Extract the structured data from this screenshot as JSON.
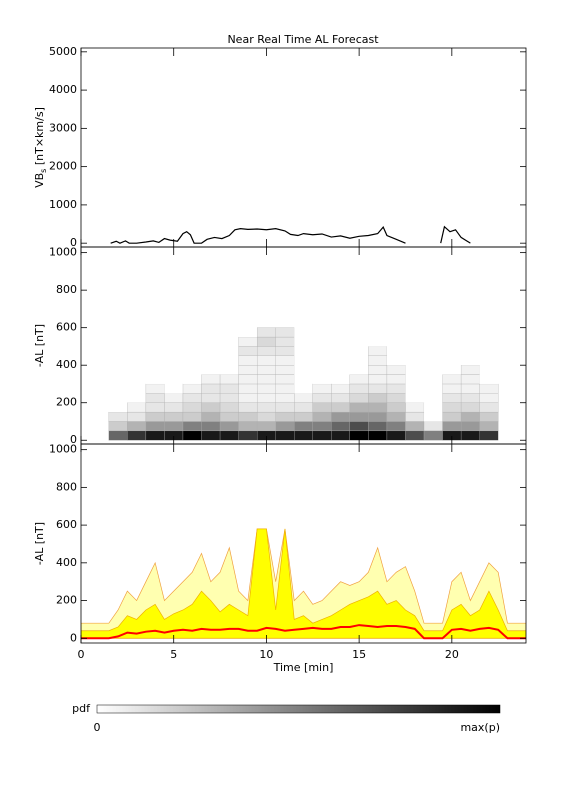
{
  "chart_data": [
    {
      "type": "line",
      "title": "Near Real Time AL Forecast",
      "ylabel": "VB",
      "ylabel_subscript": "s",
      "ylabel_units": " [nT×km/s]",
      "color": "#000000",
      "x": [
        1.6,
        1.9,
        2.1,
        2.4,
        2.6,
        3,
        3.5,
        3.9,
        4.2,
        4.5,
        4.8,
        5.2,
        5.5,
        5.7,
        5.9,
        6.1,
        6.5,
        6.8,
        7.2,
        7.6,
        8,
        8.3,
        8.6,
        9,
        9.5,
        10,
        10.5,
        11,
        11.3,
        11.7,
        12,
        12.5,
        13,
        13.5,
        14,
        14.5,
        15,
        15.5,
        16,
        16.3,
        16.5,
        17,
        17.5,
        18.5,
        19.4,
        19.6,
        19.9,
        20.2,
        20.5,
        20.8,
        21
      ],
      "values": [
        0,
        50,
        0,
        60,
        0,
        0,
        30,
        60,
        20,
        120,
        80,
        50,
        250,
        300,
        220,
        0,
        0,
        100,
        150,
        120,
        200,
        350,
        380,
        360,
        370,
        350,
        380,
        320,
        230,
        200,
        250,
        220,
        240,
        160,
        190,
        130,
        180,
        200,
        250,
        420,
        200,
        100,
        0,
        null,
        0,
        430,
        300,
        350,
        150,
        60,
        0
      ],
      "xlim": [
        0,
        24
      ],
      "ylim": [
        -100,
        5100
      ],
      "yticks": [
        0,
        1000,
        2000,
        3000,
        4000,
        5000
      ]
    },
    {
      "type": "heatmap",
      "ylabel": "-AL [nT]",
      "x": [
        2,
        3,
        4,
        5,
        6,
        7,
        8,
        9,
        10,
        11,
        12,
        13,
        14,
        15,
        16,
        17,
        18,
        19,
        20,
        21,
        22
      ],
      "y_bins": [
        0,
        50,
        100,
        150,
        200,
        250,
        300,
        350,
        400,
        450,
        500,
        550,
        600
      ],
      "z": [
        [
          0.6,
          0.2,
          0.1,
          0,
          0,
          0,
          0,
          0,
          0,
          0,
          0,
          0
        ],
        [
          0.8,
          0.3,
          0.1,
          0.05,
          0,
          0,
          0,
          0,
          0,
          0,
          0,
          0
        ],
        [
          0.9,
          0.4,
          0.2,
          0.1,
          0.1,
          0.05,
          0,
          0,
          0,
          0,
          0,
          0
        ],
        [
          0.9,
          0.4,
          0.2,
          0.1,
          0.05,
          0,
          0,
          0,
          0,
          0,
          0,
          0
        ],
        [
          1,
          0.5,
          0.2,
          0.15,
          0.1,
          0.05,
          0,
          0,
          0,
          0,
          0,
          0
        ],
        [
          0.9,
          0.5,
          0.3,
          0.2,
          0.1,
          0.1,
          0.05,
          0,
          0,
          0,
          0,
          0
        ],
        [
          0.9,
          0.4,
          0.2,
          0.15,
          0.1,
          0.1,
          0.05,
          0,
          0,
          0,
          0,
          0
        ],
        [
          0.8,
          0.3,
          0.2,
          0.1,
          0.05,
          0.05,
          0.05,
          0.05,
          0.05,
          0.1,
          0.05,
          0
        ],
        [
          0.9,
          0.3,
          0.15,
          0.1,
          0.05,
          0.05,
          0.05,
          0.05,
          0.05,
          0.1,
          0.15,
          0.1
        ],
        [
          0.9,
          0.4,
          0.2,
          0.1,
          0.05,
          0.05,
          0.05,
          0.05,
          0.05,
          0.1,
          0.1,
          0.1
        ],
        [
          0.9,
          0.5,
          0.2,
          0.1,
          0.05,
          0,
          0,
          0,
          0,
          0,
          0,
          0
        ],
        [
          0.9,
          0.5,
          0.3,
          0.2,
          0.1,
          0.05,
          0,
          0,
          0,
          0,
          0,
          0
        ],
        [
          0.9,
          0.6,
          0.4,
          0.2,
          0.1,
          0.05,
          0,
          0,
          0,
          0,
          0,
          0
        ],
        [
          1,
          0.7,
          0.4,
          0.3,
          0.15,
          0.1,
          0.05,
          0,
          0,
          0,
          0,
          0
        ],
        [
          1,
          0.6,
          0.4,
          0.3,
          0.2,
          0.1,
          0.05,
          0.05,
          0.05,
          0.05,
          0,
          0
        ],
        [
          0.9,
          0.5,
          0.3,
          0.2,
          0.15,
          0.1,
          0.05,
          0.05,
          0,
          0,
          0,
          0
        ],
        [
          0.7,
          0.3,
          0.1,
          0.05,
          0,
          0,
          0,
          0,
          0,
          0,
          0,
          0
        ],
        [
          0.5,
          0.1,
          0,
          0,
          0,
          0,
          0,
          0,
          0,
          0,
          0,
          0
        ],
        [
          0.9,
          0.4,
          0.2,
          0.15,
          0.1,
          0.05,
          0.05,
          0,
          0,
          0,
          0,
          0
        ],
        [
          0.9,
          0.4,
          0.3,
          0.15,
          0.1,
          0.05,
          0.05,
          0.05,
          0,
          0,
          0,
          0
        ],
        [
          0.8,
          0.3,
          0.2,
          0.1,
          0.05,
          0.05,
          0,
          0,
          0,
          0,
          0,
          0
        ]
      ],
      "xlim": [
        0,
        24
      ],
      "ylim": [
        -20,
        1030
      ],
      "yticks": [
        0,
        200,
        400,
        600,
        800,
        1000
      ]
    },
    {
      "type": "area",
      "ylabel": "-AL [nT]",
      "xlabel": "Time [min]",
      "x": [
        0,
        0.5,
        1,
        1.5,
        2,
        2.5,
        3,
        3.5,
        4,
        4.5,
        5,
        5.5,
        6,
        6.5,
        7,
        7.5,
        8,
        8.5,
        9,
        9.5,
        10,
        10.5,
        11,
        11.5,
        12,
        12.5,
        13,
        13.5,
        14,
        14.5,
        15,
        15.5,
        16,
        16.5,
        17,
        17.5,
        18,
        18.5,
        19,
        19.5,
        20,
        20.5,
        21,
        21.5,
        22,
        22.5,
        23,
        23.5,
        24
      ],
      "outer": {
        "color": "#ffffb0",
        "edge": "#f0a040",
        "values": [
          80,
          80,
          80,
          80,
          150,
          250,
          200,
          300,
          400,
          200,
          250,
          300,
          350,
          450,
          300,
          350,
          480,
          250,
          200,
          580,
          580,
          300,
          580,
          200,
          250,
          180,
          200,
          250,
          300,
          280,
          300,
          350,
          480,
          300,
          350,
          380,
          250,
          80,
          80,
          80,
          300,
          350,
          200,
          300,
          400,
          350,
          80,
          80,
          80
        ]
      },
      "inner": {
        "color": "#ffff00",
        "edge": "#f0b000",
        "values": [
          40,
          40,
          40,
          40,
          60,
          120,
          100,
          150,
          180,
          100,
          130,
          150,
          180,
          250,
          200,
          140,
          180,
          150,
          120,
          580,
          580,
          150,
          580,
          100,
          120,
          80,
          100,
          120,
          150,
          180,
          200,
          220,
          250,
          180,
          200,
          150,
          120,
          40,
          40,
          40,
          150,
          180,
          120,
          150,
          250,
          150,
          40,
          40,
          40
        ]
      },
      "median": {
        "color": "#ff0000",
        "values": [
          0,
          0,
          0,
          0,
          10,
          30,
          25,
          35,
          40,
          30,
          40,
          45,
          40,
          50,
          45,
          45,
          50,
          50,
          40,
          40,
          55,
          50,
          40,
          45,
          50,
          55,
          50,
          50,
          60,
          60,
          70,
          65,
          60,
          65,
          65,
          60,
          50,
          0,
          0,
          0,
          45,
          50,
          40,
          50,
          55,
          45,
          0,
          0,
          0
        ]
      },
      "xlim": [
        0,
        24
      ],
      "ylim": [
        -25,
        1030
      ],
      "xticks": [
        0,
        5,
        10,
        15,
        20
      ],
      "yticks": [
        0,
        200,
        400,
        600,
        800,
        1000
      ]
    }
  ],
  "colorbar": {
    "label": "pdf",
    "min_label": "0",
    "max_label": "max(p)"
  }
}
